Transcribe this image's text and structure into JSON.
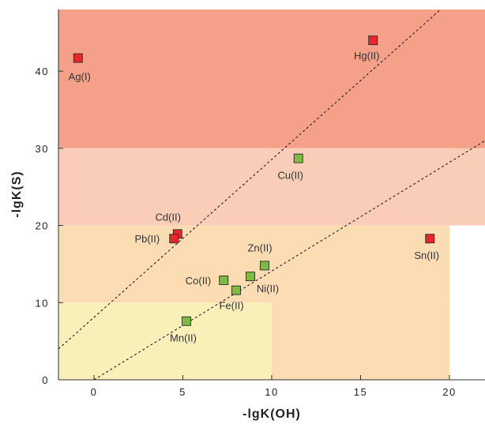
{
  "chart_data": {
    "type": "scatter",
    "xlabel": "-lgK(OH)",
    "ylabel": "-lgK(S)",
    "xlim": [
      -2,
      22
    ],
    "ylim": [
      0,
      48
    ],
    "xticks": [
      0,
      5,
      10,
      15,
      20
    ],
    "yticks": [
      0,
      10,
      20,
      30,
      40
    ],
    "grid": false,
    "regions": [
      {
        "x": [
          -2,
          22
        ],
        "y": [
          30,
          48
        ],
        "color": "#f5a18a"
      },
      {
        "x": [
          -2,
          22
        ],
        "y": [
          20,
          30
        ],
        "color": "#f9cdb8"
      },
      {
        "x": [
          -2,
          20
        ],
        "y": [
          10,
          20
        ],
        "color": "#fbdcb3"
      },
      {
        "x": [
          -2,
          10
        ],
        "y": [
          0,
          10
        ],
        "color": "#f9efb8"
      },
      {
        "x": [
          10,
          20
        ],
        "y": [
          0,
          10
        ],
        "color": "#fbdcb3"
      }
    ],
    "lines": [
      {
        "x": [
          -2,
          19.5
        ],
        "y": [
          4,
          48
        ],
        "style": "dashed"
      },
      {
        "x": [
          0,
          22
        ],
        "y": [
          0,
          31
        ],
        "style": "dashed"
      }
    ],
    "series": [
      {
        "color": "#e8262b",
        "points": [
          {
            "label": "Ag(I)",
            "x": -0.9,
            "y": 41.7
          },
          {
            "label": "Hg(II)",
            "x": 15.7,
            "y": 44.0
          },
          {
            "label": "Cd(II)",
            "x": 4.7,
            "y": 18.9
          },
          {
            "label": "Pb(II)",
            "x": 4.5,
            "y": 18.3
          },
          {
            "label": "Sn(II)",
            "x": 18.9,
            "y": 18.3
          }
        ]
      },
      {
        "color": "#7dbb42",
        "points": [
          {
            "label": "Cu(II)",
            "x": 11.5,
            "y": 28.7
          },
          {
            "label": "Zn(II)",
            "x": 9.6,
            "y": 14.8
          },
          {
            "label": "Ni(II)",
            "x": 8.8,
            "y": 13.4
          },
          {
            "label": "Co(II)",
            "x": 7.3,
            "y": 12.9
          },
          {
            "label": "Fe(II)",
            "x": 8.0,
            "y": 11.6
          },
          {
            "label": "Mn(II)",
            "x": 5.2,
            "y": 7.6
          }
        ]
      }
    ]
  }
}
